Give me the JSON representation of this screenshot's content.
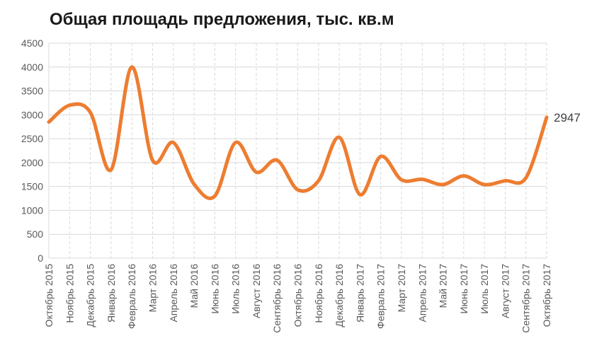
{
  "chart_data": {
    "type": "line",
    "title": "Общая площадь предложения, тыс. кв.м",
    "xlabel": "",
    "ylabel": "",
    "ylim": [
      0,
      4500
    ],
    "yticks": [
      0,
      500,
      1000,
      1500,
      2000,
      2500,
      3000,
      3500,
      4000,
      4500
    ],
    "grid": {
      "horizontal": true,
      "vertical": true,
      "vertical_style": "dashed"
    },
    "categories": [
      "Октябрь 2015",
      "Ноябрь 2015",
      "Декабрь 2015",
      "Январь 2016",
      "Февраль 2016",
      "Март 2016",
      "Апрель 2016",
      "Май 2016",
      "Июнь 2016",
      "Июль 2016",
      "Август 2016",
      "Сентябрь 2016",
      "Октябрь 2016",
      "Ноябрь 2016",
      "Декабрь 2016",
      "Январь 2017",
      "Февраль 2017",
      "Март 2017",
      "Апрель 2017",
      "Май 2017",
      "Июнь 2017",
      "Июль 2017",
      "Август 2017",
      "Сентябрь 2017",
      "Октябрь 2017"
    ],
    "series": [
      {
        "values": [
          2850,
          3200,
          3050,
          1850,
          4000,
          2050,
          2420,
          1550,
          1300,
          2420,
          1800,
          2050,
          1430,
          1620,
          2530,
          1330,
          2130,
          1640,
          1650,
          1540,
          1720,
          1540,
          1620,
          1680,
          2947
        ],
        "color": "#ed7d31",
        "smooth": true,
        "end_label": "2947"
      }
    ]
  }
}
